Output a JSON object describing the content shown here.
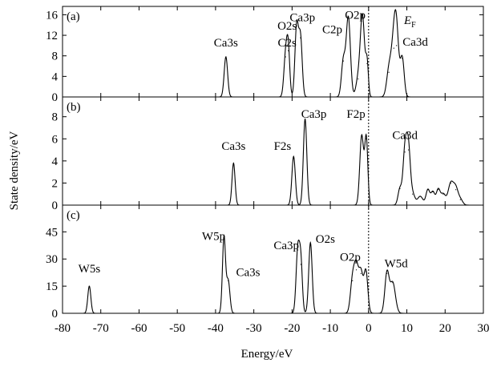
{
  "chart_data": {
    "type": "line",
    "xlabel": "Energy/eV",
    "ylabel": "State density/eV",
    "xlim": [
      -80,
      30
    ],
    "x_ticks": [
      -80,
      -70,
      -60,
      -50,
      -40,
      -30,
      -20,
      -10,
      0,
      10,
      20,
      30
    ],
    "fermi_level_x": 0,
    "fermi_label": "E",
    "fermi_sub": "F",
    "panels": [
      {
        "label": "(a)",
        "ylim": [
          0,
          17
        ],
        "y_ticks": [
          0,
          4,
          8,
          12,
          16
        ],
        "peaks": [
          {
            "x": -37.3,
            "h": 7.8,
            "w": 0.45
          },
          {
            "x": -21.7,
            "h": 7.8,
            "w": 0.45
          },
          {
            "x": -21.0,
            "h": 9.0,
            "w": 0.4
          },
          {
            "x": -18.8,
            "h": 13.8,
            "w": 0.45
          },
          {
            "x": -17.8,
            "h": 11.5,
            "w": 0.45
          },
          {
            "x": -6.6,
            "h": 7.0,
            "w": 0.5
          },
          {
            "x": -5.3,
            "h": 15.5,
            "w": 0.55
          },
          {
            "x": -2.7,
            "h": 3.5,
            "w": 0.6
          },
          {
            "x": -1.6,
            "h": 15.5,
            "w": 0.55
          },
          {
            "x": -0.4,
            "h": 6.5,
            "w": 0.35
          },
          {
            "x": 5.3,
            "h": 4.8,
            "w": 0.6
          },
          {
            "x": 6.6,
            "h": 9.5,
            "w": 0.7
          },
          {
            "x": 7.3,
            "h": 10.0,
            "w": 0.6
          },
          {
            "x": 8.8,
            "h": 7.5,
            "w": 0.5
          }
        ],
        "annotations": [
          {
            "text": "Ca3s",
            "x": -37.3,
            "y": 9.8
          },
          {
            "text": "O2s",
            "x": -21.3,
            "y": 13.1
          },
          {
            "text": "C2s",
            "x": -21.3,
            "y": 9.8
          },
          {
            "text": "Ca3p",
            "x": -17.3,
            "y": 14.7
          },
          {
            "text": "C2p",
            "x": -9.5,
            "y": 12.4
          },
          {
            "text": "O2p",
            "x": -3.5,
            "y": 15.2
          },
          {
            "text": "Ca3d",
            "x": 12.2,
            "y": 10.0
          }
        ]
      },
      {
        "label": "(b)",
        "ylim": [
          0,
          9.5
        ],
        "y_ticks": [
          0,
          2,
          4,
          6,
          8
        ],
        "peaks": [
          {
            "x": -35.3,
            "h": 3.8,
            "w": 0.4
          },
          {
            "x": -19.6,
            "h": 4.4,
            "w": 0.45
          },
          {
            "x": -16.6,
            "h": 7.8,
            "w": 0.45
          },
          {
            "x": -1.8,
            "h": 6.3,
            "w": 0.5
          },
          {
            "x": -0.6,
            "h": 6.0,
            "w": 0.4
          },
          {
            "x": 8.2,
            "h": 1.5,
            "w": 0.5
          },
          {
            "x": 9.5,
            "h": 4.8,
            "w": 0.5
          },
          {
            "x": 10.4,
            "h": 5.0,
            "w": 0.5
          },
          {
            "x": 11.5,
            "h": 1.0,
            "w": 0.6
          },
          {
            "x": 13.5,
            "h": 0.8,
            "w": 0.7
          },
          {
            "x": 15.5,
            "h": 1.4,
            "w": 0.5
          },
          {
            "x": 16.8,
            "h": 1.2,
            "w": 0.5
          },
          {
            "x": 18.2,
            "h": 1.4,
            "w": 0.5
          },
          {
            "x": 19.5,
            "h": 1.0,
            "w": 0.6
          },
          {
            "x": 21.5,
            "h": 2.0,
            "w": 0.7
          },
          {
            "x": 22.8,
            "h": 1.4,
            "w": 0.6
          },
          {
            "x": 24.0,
            "h": 0.5,
            "w": 0.6
          }
        ],
        "annotations": [
          {
            "text": "Ca3s",
            "x": -35.3,
            "y": 5.0
          },
          {
            "text": "F2s",
            "x": -22.5,
            "y": 5.0
          },
          {
            "text": "Ca3p",
            "x": -14.3,
            "y": 7.9
          },
          {
            "text": "F2p",
            "x": -3.3,
            "y": 7.9
          },
          {
            "text": "Ca3d",
            "x": 9.5,
            "y": 6.0
          }
        ]
      },
      {
        "label": "(c)",
        "ylim": [
          0,
          58
        ],
        "y_ticks": [
          0,
          15,
          30,
          45
        ],
        "peaks": [
          {
            "x": -73.0,
            "h": 15.0,
            "w": 0.4
          },
          {
            "x": -37.8,
            "h": 42.0,
            "w": 0.4
          },
          {
            "x": -36.7,
            "h": 18.0,
            "w": 0.45
          },
          {
            "x": -18.5,
            "h": 35.0,
            "w": 0.45
          },
          {
            "x": -17.7,
            "h": 27.0,
            "w": 0.4
          },
          {
            "x": -15.2,
            "h": 39.0,
            "w": 0.45
          },
          {
            "x": -4.2,
            "h": 18.0,
            "w": 0.55
          },
          {
            "x": -3.2,
            "h": 24.0,
            "w": 0.55
          },
          {
            "x": -2.0,
            "h": 22.0,
            "w": 0.55
          },
          {
            "x": -0.7,
            "h": 23.0,
            "w": 0.5
          },
          {
            "x": 4.8,
            "h": 22.0,
            "w": 0.55
          },
          {
            "x": 6.3,
            "h": 17.0,
            "w": 0.7
          }
        ],
        "annotations": [
          {
            "text": "W5s",
            "x": -73.0,
            "y": 22.5
          },
          {
            "text": "W5p",
            "x": -40.5,
            "y": 40.5
          },
          {
            "text": "Ca3s",
            "x": -31.5,
            "y": 20.5
          },
          {
            "text": "Ca3p",
            "x": -21.5,
            "y": 35.5
          },
          {
            "text": "O2s",
            "x": -11.3,
            "y": 39.0
          },
          {
            "text": "O2p",
            "x": -4.8,
            "y": 29.0
          },
          {
            "text": "W5d",
            "x": 7.2,
            "y": 25.5
          }
        ]
      }
    ]
  }
}
